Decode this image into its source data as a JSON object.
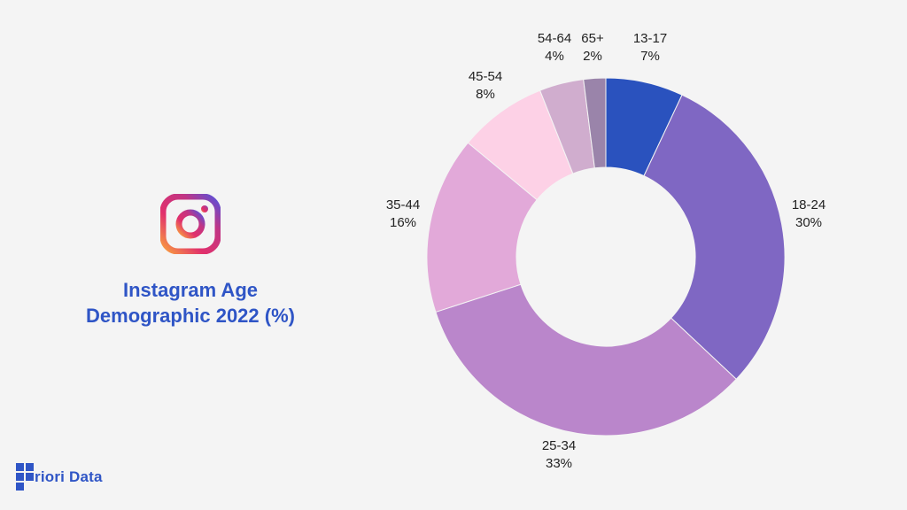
{
  "title_lines": [
    "Instagram Age",
    "Demographic 2022 (%)"
  ],
  "logo_icon": "instagram-icon",
  "brand": {
    "icon": "priori-data-logo-icon",
    "text": "riori Data"
  },
  "chart_data": {
    "type": "pie",
    "title": "Instagram Age Demographic 2022 (%)",
    "donut": true,
    "legend": "none",
    "categories": [
      "13-17",
      "18-24",
      "25-34",
      "35-44",
      "45-54",
      "54-64",
      "65+"
    ],
    "values": [
      7,
      30,
      33,
      16,
      8,
      4,
      2
    ],
    "value_labels": [
      "7%",
      "30%",
      "33%",
      "16%",
      "8%",
      "4%",
      "2%"
    ],
    "colors": [
      "#2a52be",
      "#7f67c3",
      "#ba86cb",
      "#e2a9d9",
      "#fdd1e6",
      "#d0adce",
      "#9a84aa"
    ]
  }
}
